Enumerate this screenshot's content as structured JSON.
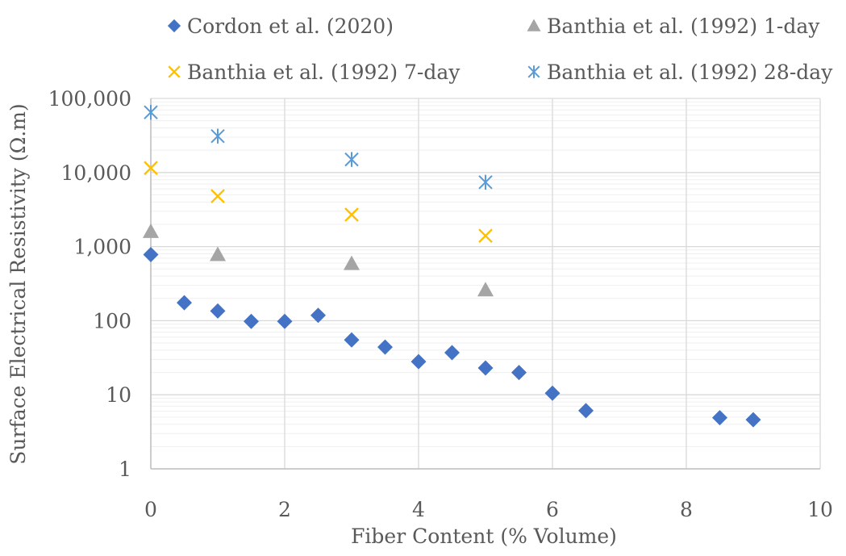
{
  "chart_data": {
    "type": "scatter",
    "title": "",
    "xlabel": "Fiber Content (% Volume)",
    "ylabel": "Surface Electrical Resistivity (Ω.m)",
    "xlim": [
      0,
      10
    ],
    "ylim": [
      1,
      100000
    ],
    "yscale": "log",
    "x_ticks": [
      0,
      2,
      4,
      6,
      8,
      10
    ],
    "x_tick_labels": [
      "0",
      "2",
      "4",
      "6",
      "8",
      "10"
    ],
    "y_ticks": [
      1,
      10,
      100,
      1000,
      10000,
      100000
    ],
    "y_tick_labels": [
      "1",
      "10",
      "100",
      "1,000",
      "10,000",
      "100,000"
    ],
    "grid": true,
    "legend_position": "top",
    "series": [
      {
        "name": "Cordon et al. (2020)",
        "marker": "diamond",
        "color": "#4472C4",
        "x": [
          0,
          0.5,
          1,
          1.5,
          2,
          2.5,
          3,
          3.5,
          4,
          4.5,
          5,
          5.5,
          6,
          6.5,
          8.5,
          9
        ],
        "y": [
          780,
          175,
          135,
          98,
          98,
          118,
          55,
          44,
          28,
          37,
          23,
          20,
          10.5,
          6.1,
          4.9,
          4.6
        ]
      },
      {
        "name": "Banthia et al. (1992) 1-day",
        "marker": "triangle",
        "color": "#A5A5A5",
        "x": [
          0,
          1,
          3,
          5
        ],
        "y": [
          1600,
          780,
          590,
          260
        ]
      },
      {
        "name": "Banthia et al. (1992) 7-day",
        "marker": "x",
        "color": "#FFC000",
        "x": [
          0,
          1,
          3,
          5
        ],
        "y": [
          11500,
          4800,
          2700,
          1400
        ]
      },
      {
        "name": "Banthia et al. (1992) 28-day",
        "marker": "asterisk",
        "color": "#5B9BD5",
        "x": [
          0,
          1,
          3,
          5
        ],
        "y": [
          65000,
          31000,
          15000,
          7400
        ]
      }
    ]
  }
}
